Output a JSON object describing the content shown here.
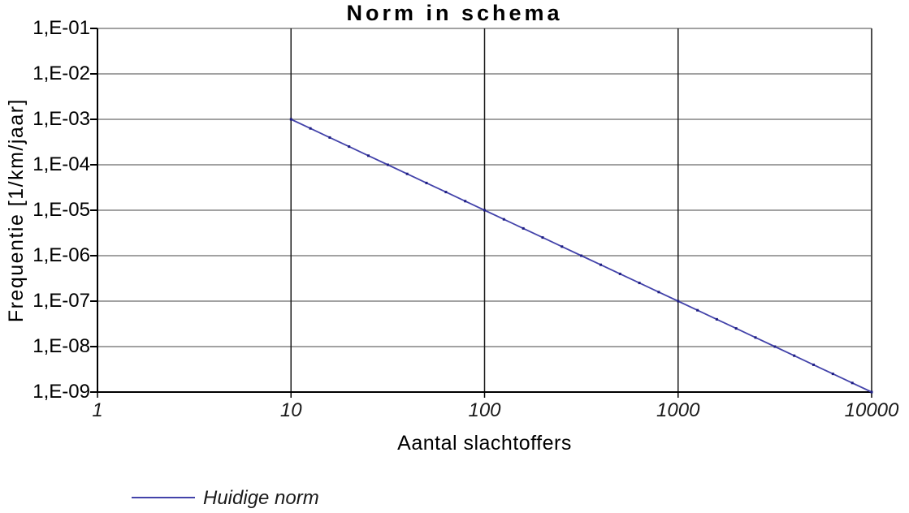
{
  "chart_data": {
    "type": "line",
    "title": "Norm in schema",
    "xlabel": "Aantal slachtoffers",
    "ylabel": "Frequentie [1/km/jaar]",
    "x_scale": "log",
    "y_scale": "log",
    "xlim": [
      1,
      10000
    ],
    "ylim": [
      1e-09,
      0.1
    ],
    "grid": true,
    "x_ticks": [
      {
        "value": 1,
        "label": "1"
      },
      {
        "value": 10,
        "label": "10"
      },
      {
        "value": 100,
        "label": "100"
      },
      {
        "value": 1000,
        "label": "1000"
      },
      {
        "value": 10000,
        "label": "10000"
      }
    ],
    "y_ticks": [
      {
        "value": 0.1,
        "label": "1,E-01"
      },
      {
        "value": 0.01,
        "label": "1,E-02"
      },
      {
        "value": 0.001,
        "label": "1,E-03"
      },
      {
        "value": 0.0001,
        "label": "1,E-04"
      },
      {
        "value": 1e-05,
        "label": "1,E-05"
      },
      {
        "value": 1e-06,
        "label": "1,E-06"
      },
      {
        "value": 1e-07,
        "label": "1,E-07"
      },
      {
        "value": 1e-08,
        "label": "1,E-08"
      },
      {
        "value": 1e-09,
        "label": "1,E-09"
      }
    ],
    "series": [
      {
        "name": "Huidige norm",
        "color": "#4343aa",
        "marker_color": "#1c1c82",
        "markers_per_decade": 10,
        "points": [
          [
            10,
            0.001
          ],
          [
            100,
            1e-05
          ],
          [
            1000,
            1e-07
          ],
          [
            10000,
            1e-09
          ]
        ]
      }
    ],
    "legend": {
      "position": "bottom-left",
      "entries": [
        "Huidige norm"
      ]
    }
  },
  "colors": {
    "background": "#ffffff",
    "grid_horizontal": "#848484",
    "grid_vertical": "#1a1a1a",
    "axis": "#000000",
    "plot_border_right": "#4d4d4d",
    "text": "#000000"
  }
}
